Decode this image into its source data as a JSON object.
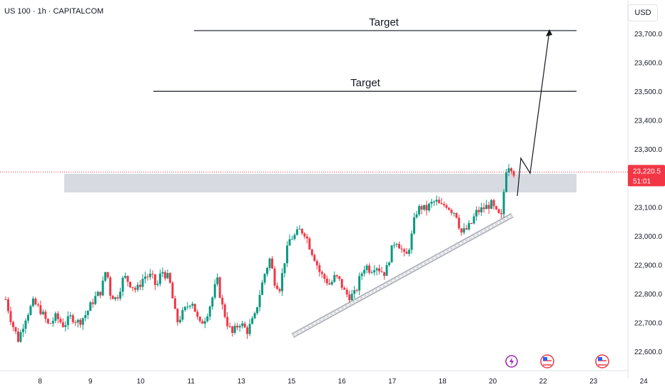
{
  "symbol": {
    "title": "US 100 · 1h · CAPITALCOM"
  },
  "currency": "USD",
  "price_tag": {
    "price": "23,220.5",
    "countdown": "51:01"
  },
  "colors": {
    "up": "#089981",
    "down": "#f23645",
    "line": "#131722",
    "zone": "#d1d4dc",
    "trendline": "#b2b5be",
    "grid": "#ffffff",
    "price_line": "#f23645"
  },
  "annotations": {
    "target_upper": "Target",
    "target_lower": "Target"
  },
  "chart_data": {
    "type": "candlestick",
    "title": "US 100 · 1h · CAPITALCOM",
    "y_range": [
      22540,
      23770
    ],
    "y_ticks": [
      {
        "value": 23700,
        "label": "23,700.0"
      },
      {
        "value": 23600,
        "label": "23,600.0"
      },
      {
        "value": 23500,
        "label": "23,500.0"
      },
      {
        "value": 23400,
        "label": "23,400.0"
      },
      {
        "value": 23300,
        "label": "23,300.0"
      },
      {
        "value": 23100,
        "label": "23,100.0"
      },
      {
        "value": 23000,
        "label": "23,000.0"
      },
      {
        "value": 22900,
        "label": "22,900.0"
      },
      {
        "value": 22800,
        "label": "22,800.0"
      },
      {
        "value": 22700,
        "label": "22,700.0"
      },
      {
        "value": 22600,
        "label": "22,600.0"
      }
    ],
    "x_ticks": [
      "8",
      "9",
      "10",
      "11",
      "13",
      "15",
      "16",
      "17",
      "18",
      "20",
      "22",
      "23",
      "24"
    ],
    "x_range": [
      0,
      13
    ],
    "x_tick_positions": [
      0.4,
      1.4,
      2.4,
      3.4,
      4.4,
      5.4,
      6.4,
      7.4,
      8.4,
      9.4,
      10.4,
      11.4,
      12.4
    ],
    "last_price": 23220.5,
    "targets": [
      23710,
      23500
    ],
    "zone": [
      23150,
      23190
    ],
    "trend_channel": {
      "from": [
        5.8,
        22660
      ],
      "to": [
        10.2,
        23075
      ]
    },
    "projection_path": [
      [
        10.3,
        23150
      ],
      [
        10.42,
        23280
      ],
      [
        10.55,
        23210
      ],
      [
        10.95,
        23710
      ]
    ],
    "price_path": [
      [
        0.0,
        22780
      ],
      [
        0.12,
        22700
      ],
      [
        0.25,
        22640
      ],
      [
        0.4,
        22720
      ],
      [
        0.55,
        22770
      ],
      [
        0.7,
        22740
      ],
      [
        0.85,
        22690
      ],
      [
        1.0,
        22720
      ],
      [
        1.15,
        22690
      ],
      [
        1.3,
        22720
      ],
      [
        1.45,
        22700
      ],
      [
        1.6,
        22730
      ],
      [
        1.75,
        22780
      ],
      [
        1.9,
        22810
      ],
      [
        2.0,
        22890
      ],
      [
        2.08,
        22800
      ],
      [
        2.2,
        22780
      ],
      [
        2.35,
        22860
      ],
      [
        2.5,
        22830
      ],
      [
        2.6,
        22810
      ],
      [
        2.75,
        22860
      ],
      [
        2.9,
        22860
      ],
      [
        3.0,
        22820
      ],
      [
        3.1,
        22880
      ],
      [
        3.25,
        22850
      ],
      [
        3.4,
        22700
      ],
      [
        3.55,
        22740
      ],
      [
        3.7,
        22780
      ],
      [
        3.85,
        22690
      ],
      [
        3.98,
        22720
      ],
      [
        4.1,
        22780
      ],
      [
        4.2,
        22850
      ],
      [
        4.3,
        22760
      ],
      [
        4.4,
        22700
      ],
      [
        4.5,
        22660
      ],
      [
        4.65,
        22700
      ],
      [
        4.8,
        22670
      ],
      [
        4.95,
        22720
      ],
      [
        5.05,
        22800
      ],
      [
        5.15,
        22870
      ],
      [
        5.25,
        22920
      ],
      [
        5.35,
        22840
      ],
      [
        5.45,
        22820
      ],
      [
        5.55,
        22920
      ],
      [
        5.65,
        22990
      ],
      [
        5.75,
        23000
      ],
      [
        5.85,
        23020
      ],
      [
        5.95,
        23010
      ],
      [
        6.05,
        22960
      ],
      [
        6.15,
        22920
      ],
      [
        6.25,
        22870
      ],
      [
        6.35,
        22850
      ],
      [
        6.45,
        22830
      ],
      [
        6.55,
        22860
      ],
      [
        6.65,
        22840
      ],
      [
        6.75,
        22800
      ],
      [
        6.85,
        22790
      ],
      [
        6.95,
        22800
      ],
      [
        7.05,
        22860
      ],
      [
        7.15,
        22900
      ],
      [
        7.25,
        22880
      ],
      [
        7.35,
        22900
      ],
      [
        7.45,
        22880
      ],
      [
        7.55,
        22870
      ],
      [
        7.65,
        22940
      ],
      [
        7.75,
        22990
      ],
      [
        7.85,
        22960
      ],
      [
        7.95,
        22920
      ],
      [
        8.05,
        22980
      ],
      [
        8.15,
        23080
      ],
      [
        8.25,
        23100
      ],
      [
        8.35,
        23090
      ],
      [
        8.45,
        23110
      ],
      [
        8.55,
        23120
      ],
      [
        8.65,
        23100
      ],
      [
        8.75,
        23110
      ],
      [
        8.85,
        23090
      ],
      [
        8.95,
        23080
      ],
      [
        9.05,
        23010
      ],
      [
        9.15,
        23020
      ],
      [
        9.25,
        23040
      ],
      [
        9.35,
        23080
      ],
      [
        9.45,
        23090
      ],
      [
        9.55,
        23100
      ],
      [
        9.65,
        23110
      ],
      [
        9.75,
        23080
      ],
      [
        9.85,
        23060
      ],
      [
        9.9,
        23150
      ],
      [
        9.95,
        23230
      ],
      [
        10.02,
        23250
      ],
      [
        10.1,
        23220
      ]
    ]
  }
}
